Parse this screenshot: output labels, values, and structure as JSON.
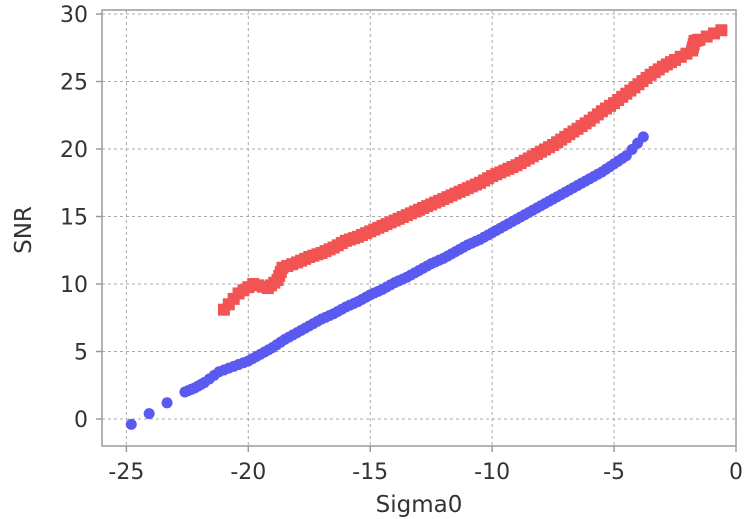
{
  "chart_data": {
    "type": "scatter",
    "xlabel": "Sigma0",
    "ylabel": "SNR",
    "xlim": [
      -26,
      0
    ],
    "ylim": [
      -2,
      30.3
    ],
    "xticks": [
      -25,
      -20,
      -15,
      -10,
      -5,
      0
    ],
    "yticks": [
      0,
      5,
      10,
      15,
      20,
      25,
      30
    ],
    "grid": true,
    "series": [
      {
        "marker": "square",
        "color": "#f25353",
        "points": [
          [
            -21.0,
            8.1
          ],
          [
            -20.4,
            9.3
          ],
          [
            -19.8,
            10.0
          ],
          [
            -19.2,
            9.7
          ],
          [
            -18.8,
            10.3
          ],
          [
            -18.6,
            11.2
          ],
          [
            -18.0,
            11.6
          ],
          [
            -17.5,
            12.0
          ],
          [
            -17.0,
            12.3
          ],
          [
            -16.5,
            12.7
          ],
          [
            -16.0,
            13.2
          ],
          [
            -15.5,
            13.5
          ],
          [
            -15.0,
            13.9
          ],
          [
            -14.5,
            14.3
          ],
          [
            -14.0,
            14.7
          ],
          [
            -13.5,
            15.1
          ],
          [
            -13.0,
            15.5
          ],
          [
            -12.5,
            15.9
          ],
          [
            -12.0,
            16.3
          ],
          [
            -11.5,
            16.7
          ],
          [
            -11.0,
            17.1
          ],
          [
            -10.5,
            17.5
          ],
          [
            -10.0,
            18.0
          ],
          [
            -9.5,
            18.4
          ],
          [
            -9.0,
            18.8
          ],
          [
            -8.5,
            19.3
          ],
          [
            -8.0,
            19.8
          ],
          [
            -7.5,
            20.3
          ],
          [
            -7.0,
            20.9
          ],
          [
            -6.5,
            21.5
          ],
          [
            -6.0,
            22.1
          ],
          [
            -5.5,
            22.8
          ],
          [
            -5.0,
            23.4
          ],
          [
            -4.5,
            24.1
          ],
          [
            -4.0,
            24.8
          ],
          [
            -3.5,
            25.5
          ],
          [
            -3.0,
            26.1
          ],
          [
            -2.5,
            26.6
          ],
          [
            -1.8,
            27.3
          ],
          [
            -1.7,
            28.0
          ],
          [
            -1.5,
            28.1
          ],
          [
            -0.6,
            28.8
          ]
        ]
      },
      {
        "marker": "circle",
        "color": "#5a5af0",
        "points": [
          [
            -24.8,
            -0.4
          ],
          [
            -22.6,
            2.0
          ],
          [
            -22.2,
            2.3
          ],
          [
            -21.8,
            2.7
          ],
          [
            -21.2,
            3.5
          ],
          [
            -20.6,
            3.9
          ],
          [
            -20.0,
            4.3
          ],
          [
            -19.5,
            4.8
          ],
          [
            -19.0,
            5.3
          ],
          [
            -18.5,
            5.9
          ],
          [
            -18.0,
            6.4
          ],
          [
            -17.5,
            6.9
          ],
          [
            -17.0,
            7.4
          ],
          [
            -16.5,
            7.8
          ],
          [
            -16.0,
            8.3
          ],
          [
            -15.5,
            8.7
          ],
          [
            -15.0,
            9.2
          ],
          [
            -14.5,
            9.6
          ],
          [
            -14.0,
            10.1
          ],
          [
            -13.5,
            10.5
          ],
          [
            -13.0,
            11.0
          ],
          [
            -12.5,
            11.5
          ],
          [
            -12.0,
            11.9
          ],
          [
            -11.5,
            12.4
          ],
          [
            -11.0,
            12.9
          ],
          [
            -10.5,
            13.3
          ],
          [
            -10.0,
            13.8
          ],
          [
            -9.5,
            14.3
          ],
          [
            -9.0,
            14.8
          ],
          [
            -8.5,
            15.3
          ],
          [
            -8.0,
            15.8
          ],
          [
            -7.5,
            16.3
          ],
          [
            -7.0,
            16.8
          ],
          [
            -6.5,
            17.3
          ],
          [
            -6.0,
            17.8
          ],
          [
            -5.5,
            18.3
          ],
          [
            -5.0,
            18.9
          ],
          [
            -4.5,
            19.5
          ],
          [
            -3.8,
            20.9
          ]
        ]
      }
    ]
  }
}
